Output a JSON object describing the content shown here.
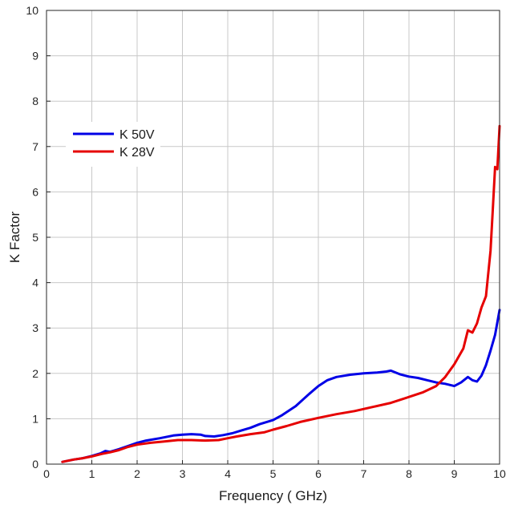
{
  "chart_data": {
    "type": "line",
    "title": "",
    "xlabel": "Frequency ( GHz)",
    "ylabel": "K Factor",
    "xlim": [
      0,
      10
    ],
    "ylim": [
      0,
      10
    ],
    "xticks": [
      "0",
      "1",
      "2",
      "3",
      "4",
      "5",
      "6",
      "7",
      "8",
      "9",
      "10"
    ],
    "yticks": [
      "0",
      "1",
      "2",
      "3",
      "4",
      "5",
      "6",
      "7",
      "8",
      "9",
      "10"
    ],
    "grid": true,
    "legend_position": "upper-left",
    "series": [
      {
        "name": "K 50V",
        "color": "#0000e6",
        "points": [
          [
            0.35,
            0.05
          ],
          [
            0.6,
            0.1
          ],
          [
            0.8,
            0.13
          ],
          [
            1.0,
            0.18
          ],
          [
            1.2,
            0.24
          ],
          [
            1.3,
            0.29
          ],
          [
            1.4,
            0.27
          ],
          [
            1.6,
            0.33
          ],
          [
            1.8,
            0.4
          ],
          [
            2.0,
            0.47
          ],
          [
            2.2,
            0.52
          ],
          [
            2.5,
            0.57
          ],
          [
            2.8,
            0.63
          ],
          [
            3.0,
            0.65
          ],
          [
            3.2,
            0.66
          ],
          [
            3.4,
            0.65
          ],
          [
            3.5,
            0.62
          ],
          [
            3.7,
            0.61
          ],
          [
            3.9,
            0.64
          ],
          [
            4.1,
            0.68
          ],
          [
            4.3,
            0.74
          ],
          [
            4.5,
            0.8
          ],
          [
            4.7,
            0.88
          ],
          [
            5.0,
            0.97
          ],
          [
            5.2,
            1.08
          ],
          [
            5.5,
            1.28
          ],
          [
            5.8,
            1.55
          ],
          [
            6.0,
            1.72
          ],
          [
            6.2,
            1.85
          ],
          [
            6.4,
            1.92
          ],
          [
            6.7,
            1.97
          ],
          [
            7.0,
            2.0
          ],
          [
            7.3,
            2.02
          ],
          [
            7.5,
            2.04
          ],
          [
            7.6,
            2.06
          ],
          [
            7.8,
            1.98
          ],
          [
            8.0,
            1.93
          ],
          [
            8.2,
            1.9
          ],
          [
            8.4,
            1.85
          ],
          [
            8.6,
            1.8
          ],
          [
            8.8,
            1.77
          ],
          [
            9.0,
            1.72
          ],
          [
            9.15,
            1.8
          ],
          [
            9.3,
            1.92
          ],
          [
            9.4,
            1.85
          ],
          [
            9.5,
            1.82
          ],
          [
            9.6,
            1.95
          ],
          [
            9.7,
            2.18
          ],
          [
            9.8,
            2.5
          ],
          [
            9.9,
            2.85
          ],
          [
            10.0,
            3.4
          ]
        ]
      },
      {
        "name": "K 28V",
        "color": "#e60000",
        "points": [
          [
            0.35,
            0.05
          ],
          [
            0.6,
            0.1
          ],
          [
            0.8,
            0.13
          ],
          [
            1.0,
            0.17
          ],
          [
            1.2,
            0.22
          ],
          [
            1.4,
            0.26
          ],
          [
            1.6,
            0.31
          ],
          [
            1.8,
            0.38
          ],
          [
            2.0,
            0.43
          ],
          [
            2.3,
            0.47
          ],
          [
            2.6,
            0.5
          ],
          [
            2.9,
            0.53
          ],
          [
            3.2,
            0.53
          ],
          [
            3.5,
            0.52
          ],
          [
            3.8,
            0.53
          ],
          [
            4.0,
            0.57
          ],
          [
            4.2,
            0.61
          ],
          [
            4.5,
            0.66
          ],
          [
            4.8,
            0.7
          ],
          [
            5.0,
            0.76
          ],
          [
            5.3,
            0.84
          ],
          [
            5.6,
            0.93
          ],
          [
            6.0,
            1.02
          ],
          [
            6.4,
            1.1
          ],
          [
            6.8,
            1.17
          ],
          [
            7.2,
            1.26
          ],
          [
            7.6,
            1.35
          ],
          [
            8.0,
            1.48
          ],
          [
            8.3,
            1.58
          ],
          [
            8.6,
            1.72
          ],
          [
            8.8,
            1.92
          ],
          [
            9.0,
            2.2
          ],
          [
            9.2,
            2.55
          ],
          [
            9.3,
            2.95
          ],
          [
            9.4,
            2.9
          ],
          [
            9.5,
            3.1
          ],
          [
            9.6,
            3.45
          ],
          [
            9.7,
            3.7
          ],
          [
            9.8,
            4.7
          ],
          [
            9.85,
            5.6
          ],
          [
            9.9,
            6.55
          ],
          [
            9.95,
            6.5
          ],
          [
            10.0,
            7.45
          ]
        ]
      }
    ]
  }
}
